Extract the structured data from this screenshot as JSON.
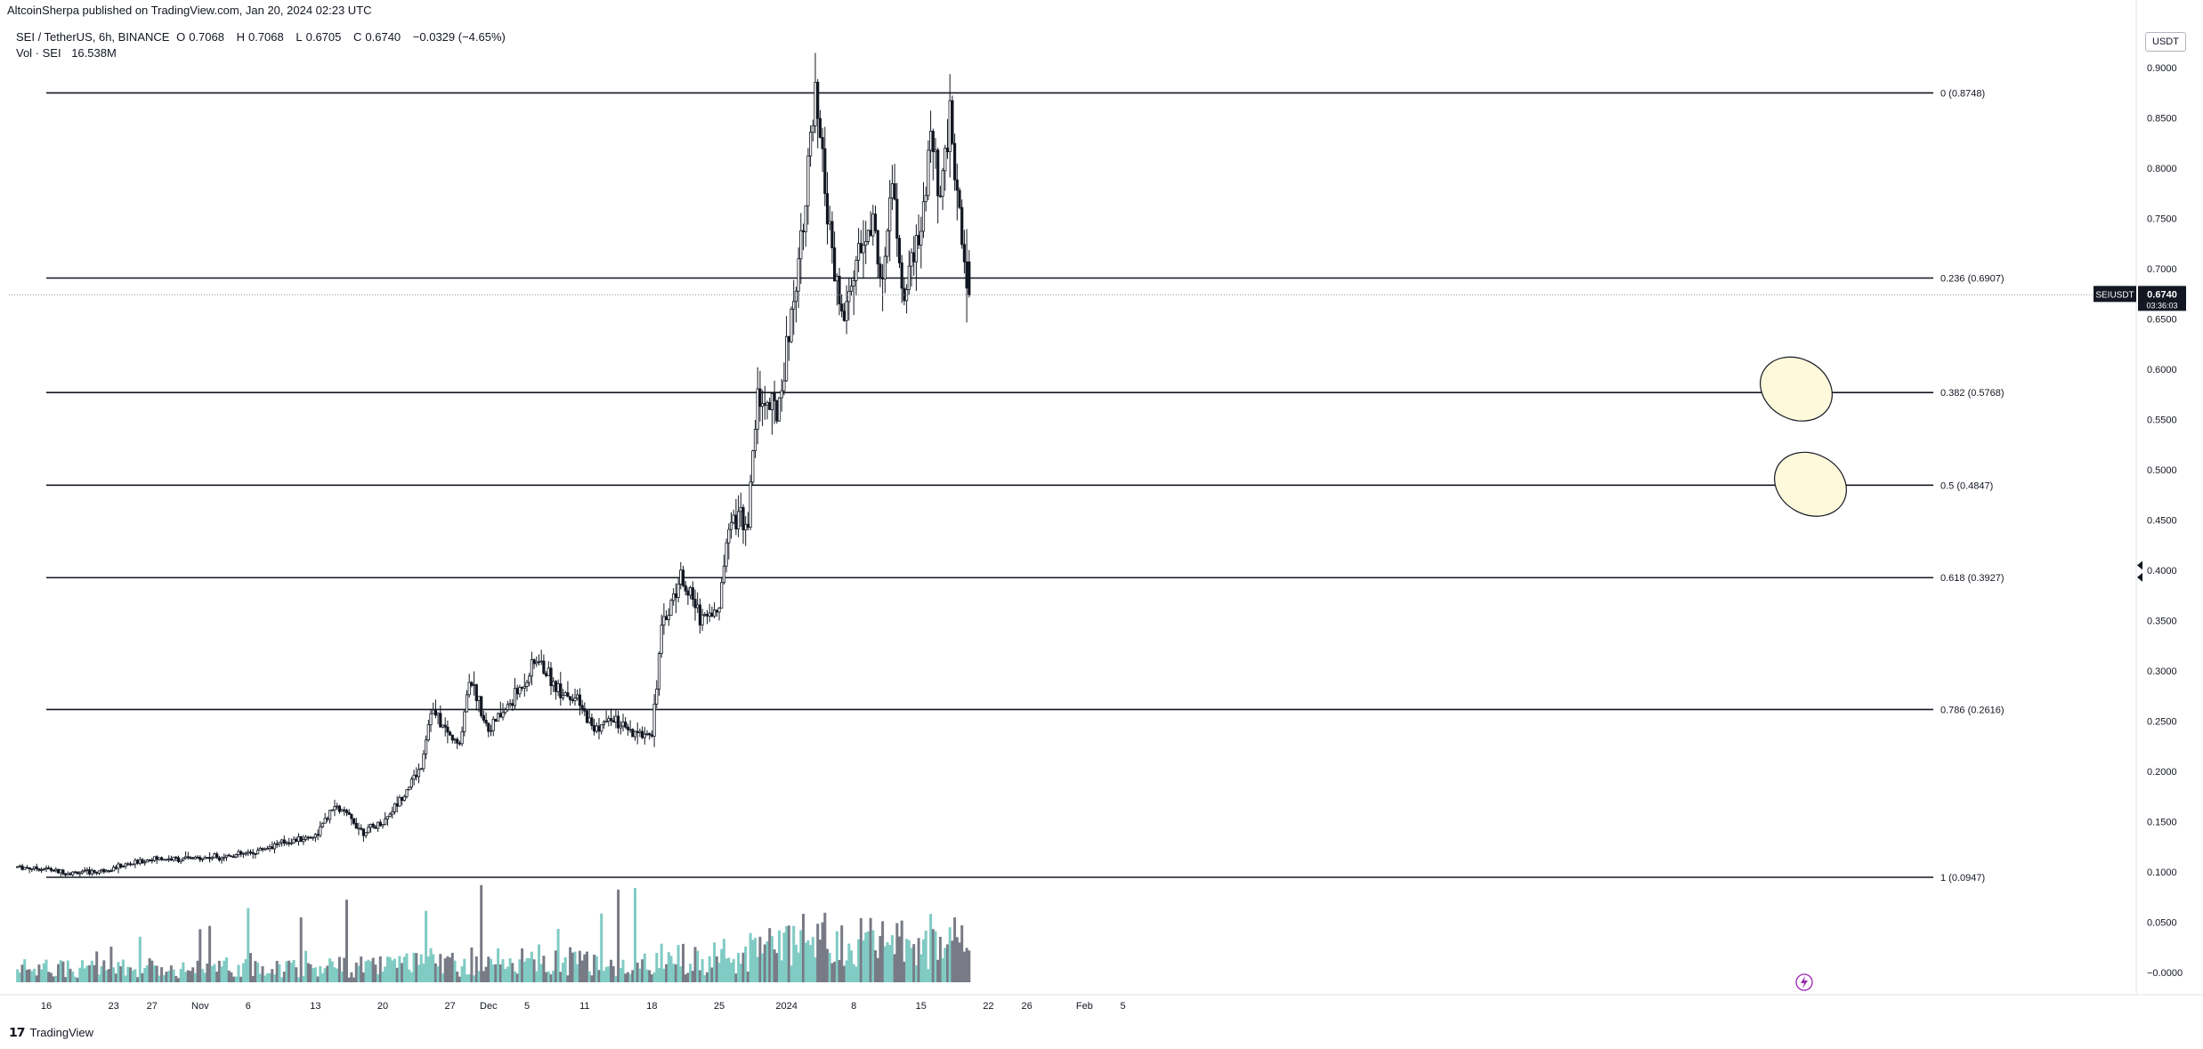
{
  "header": {
    "publisher_line": "AltcoinSherpa published on TradingView.com, Jan 20, 2024 02:23 UTC"
  },
  "legend": {
    "symbol": "SEI / TetherUS, 6h, BINANCE",
    "ohlc": [
      {
        "label": "O",
        "value": "0.7068"
      },
      {
        "label": "H",
        "value": "0.7068"
      },
      {
        "label": "L",
        "value": "0.6705"
      },
      {
        "label": "C",
        "value": "0.6740"
      }
    ],
    "change": "−0.0329 (−4.65%)",
    "volume_label": "Vol · SEI",
    "volume_value": "16.538M"
  },
  "price_axis": {
    "currency": "USDT",
    "ticks": [
      "0.9000",
      "0.8500",
      "0.8000",
      "0.7500",
      "0.7000",
      "0.6500",
      "0.6000",
      "0.5500",
      "0.5000",
      "0.4500",
      "0.4000",
      "0.3500",
      "0.3000",
      "0.2500",
      "0.2000",
      "0.1500",
      "0.1000",
      "0.0500",
      "−0.0000"
    ]
  },
  "time_axis": {
    "ticks": [
      "16",
      "23",
      "27",
      "Nov",
      "6",
      "13",
      "20",
      "27",
      "Dec",
      "5",
      "11",
      "18",
      "25",
      "2024",
      "8",
      "15",
      "22",
      "26",
      "Feb",
      "5"
    ]
  },
  "last_price": {
    "symbol": "SEIUSDT",
    "price": "0.6740",
    "countdown": "03:36:03"
  },
  "fib_levels": [
    {
      "label": "0 (0.8748)",
      "value": 0.8748
    },
    {
      "label": "0.236 (0.6907)",
      "value": 0.6907
    },
    {
      "label": "0.382 (0.5768)",
      "value": 0.5768
    },
    {
      "label": "0.5 (0.4847)",
      "value": 0.4847
    },
    {
      "label": "0.618 (0.3927)",
      "value": 0.3927
    },
    {
      "label": "0.786 (0.2616)",
      "value": 0.2616
    },
    {
      "label": "1 (0.0947)",
      "value": 0.0947
    }
  ],
  "chart_data": {
    "type": "candlestick",
    "symbol": "SEI / TetherUS",
    "interval": "6h",
    "exchange": "BINANCE",
    "x_ticks": [
      "16",
      "23",
      "27",
      "Nov",
      "6",
      "13",
      "20",
      "27",
      "Dec",
      "5",
      "11",
      "18",
      "25",
      "2024",
      "8",
      "15",
      "22",
      "26",
      "Feb",
      "5"
    ],
    "y_ticks": [
      0.9,
      0.85,
      0.8,
      0.75,
      0.7,
      0.65,
      0.6,
      0.55,
      0.5,
      0.45,
      0.4,
      0.35,
      0.3,
      0.25,
      0.2,
      0.15,
      0.1,
      0.05,
      0.0
    ],
    "ylim": [
      -0.0075,
      0.9175
    ],
    "price_path": [
      [
        "Oct 13",
        0.105
      ],
      [
        "Oct 16",
        0.103
      ],
      [
        "Oct 18",
        0.099
      ],
      [
        "Oct 21",
        0.1
      ],
      [
        "Oct 23",
        0.104
      ],
      [
        "Oct 27",
        0.113
      ],
      [
        "Oct 31",
        0.113
      ],
      [
        "Nov 6",
        0.118
      ],
      [
        "Nov 9",
        0.128
      ],
      [
        "Nov 13",
        0.136
      ],
      [
        "Nov 15",
        0.165
      ],
      [
        "Nov 16",
        0.159
      ],
      [
        "Nov 18",
        0.14
      ],
      [
        "Nov 20",
        0.149
      ],
      [
        "Nov 22",
        0.175
      ],
      [
        "Nov 24",
        0.205
      ],
      [
        "Nov 25",
        0.262
      ],
      [
        "Nov 27",
        0.235
      ],
      [
        "Nov 28",
        0.225
      ],
      [
        "Nov 29",
        0.295
      ],
      [
        "Dec 1",
        0.242
      ],
      [
        "Dec 3",
        0.264
      ],
      [
        "Dec 5",
        0.293
      ],
      [
        "Dec 6",
        0.312
      ],
      [
        "Dec 8",
        0.285
      ],
      [
        "Dec 10",
        0.272
      ],
      [
        "Dec 12",
        0.242
      ],
      [
        "Dec 14",
        0.252
      ],
      [
        "Dec 16",
        0.235
      ],
      [
        "Dec 18",
        0.24
      ],
      [
        "Dec 19",
        0.34
      ],
      [
        "Dec 21",
        0.395
      ],
      [
        "Dec 23",
        0.355
      ],
      [
        "Dec 25",
        0.36
      ],
      [
        "Dec 26",
        0.455
      ],
      [
        "Dec 28",
        0.45
      ],
      [
        "Dec 29",
        0.575
      ],
      [
        "Dec 31",
        0.555
      ],
      [
        "Jan 1",
        0.62
      ],
      [
        "Jan 2",
        0.69
      ],
      [
        "Jan 3",
        0.775
      ],
      [
        "Jan 4",
        0.865
      ],
      [
        "Jan 5",
        0.78
      ],
      [
        "Jan 6",
        0.69
      ],
      [
        "Jan 7",
        0.645
      ],
      [
        "Jan 8",
        0.7
      ],
      [
        "Jan 10",
        0.745
      ],
      [
        "Jan 11",
        0.68
      ],
      [
        "Jan 12",
        0.79
      ],
      [
        "Jan 13",
        0.67
      ],
      [
        "Jan 15",
        0.73
      ],
      [
        "Jan 16",
        0.835
      ],
      [
        "Jan 17",
        0.765
      ],
      [
        "Jan 18",
        0.855
      ],
      [
        "Jan 19",
        0.745
      ],
      [
        "Jan 20",
        0.674
      ]
    ],
    "last": {
      "open": 0.7068,
      "high": 0.7068,
      "low": 0.6705,
      "close": 0.674
    },
    "volume_series": {
      "name": "Vol · SEI",
      "last": "16.538M"
    },
    "fibonacci": [
      {
        "ratio": 0,
        "price": 0.8748
      },
      {
        "ratio": 0.236,
        "price": 0.6907
      },
      {
        "ratio": 0.382,
        "price": 0.5768
      },
      {
        "ratio": 0.5,
        "price": 0.4847
      },
      {
        "ratio": 0.618,
        "price": 0.3927
      },
      {
        "ratio": 0.786,
        "price": 0.2616
      },
      {
        "ratio": 1,
        "price": 0.0947
      }
    ],
    "annotations": [
      {
        "type": "ellipse",
        "near_price": 0.5768,
        "color": "#fff9db"
      },
      {
        "type": "ellipse",
        "near_price": 0.4847,
        "color": "#fff9db"
      }
    ],
    "colors": {
      "up": "#26a69a",
      "down": "#131722",
      "volume_up": "#80cbc4",
      "volume_down": "#787b86"
    }
  },
  "footer": {
    "brand": "TradingView"
  }
}
